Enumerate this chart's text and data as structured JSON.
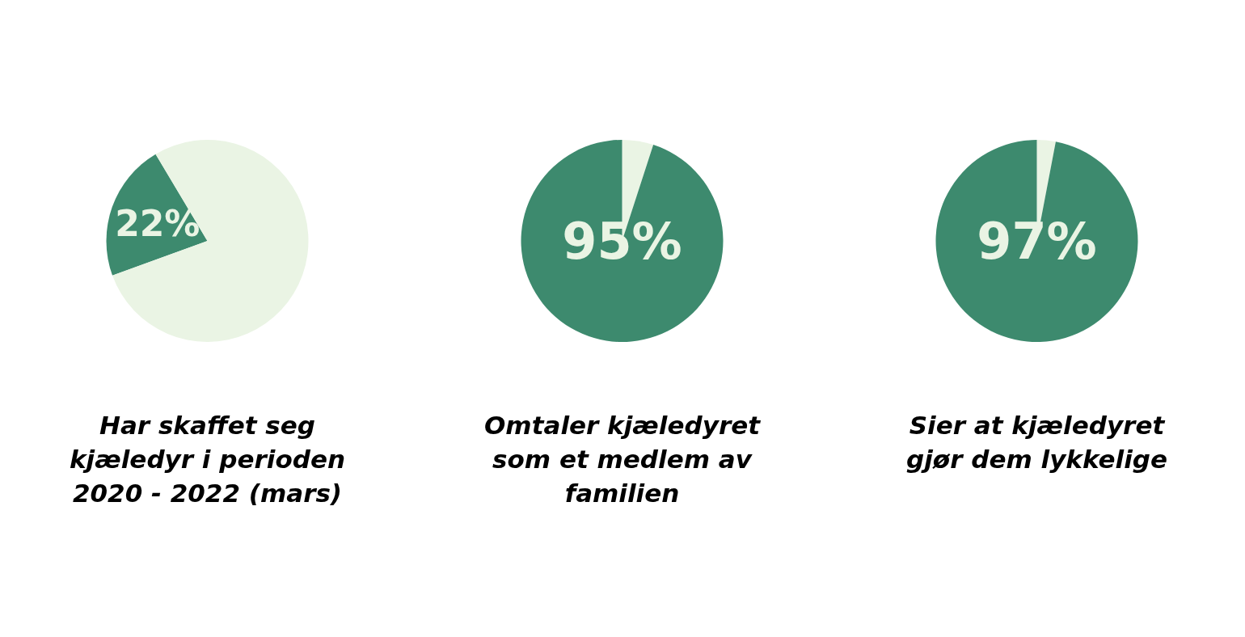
{
  "chart_data": [
    {
      "type": "pie",
      "title": "Har skaffet seg kjæledyr i perioden 2020 - 2022 (mars)",
      "categories": [
        null,
        null
      ],
      "values": [
        22,
        78
      ],
      "colors": [
        "#3d8a6e",
        "#eaf4e4"
      ],
      "value_labels": [
        "22%",
        null
      ]
    },
    {
      "type": "pie",
      "title": "Omtaler kjæledyret som et medlem av familien",
      "categories": [
        null,
        null
      ],
      "values": [
        5,
        95
      ],
      "colors": [
        "#eaf4e4",
        "#3d8a6e"
      ],
      "value_labels": [
        null,
        "95%"
      ]
    },
    {
      "type": "pie",
      "title": "Sier at kjæledyret gjør dem lykkelige",
      "categories": [
        null,
        null
      ],
      "values": [
        3,
        97
      ],
      "colors": [
        "#eaf4e4",
        "#3d8a6e"
      ],
      "value_labels": [
        null,
        "97%"
      ]
    }
  ]
}
